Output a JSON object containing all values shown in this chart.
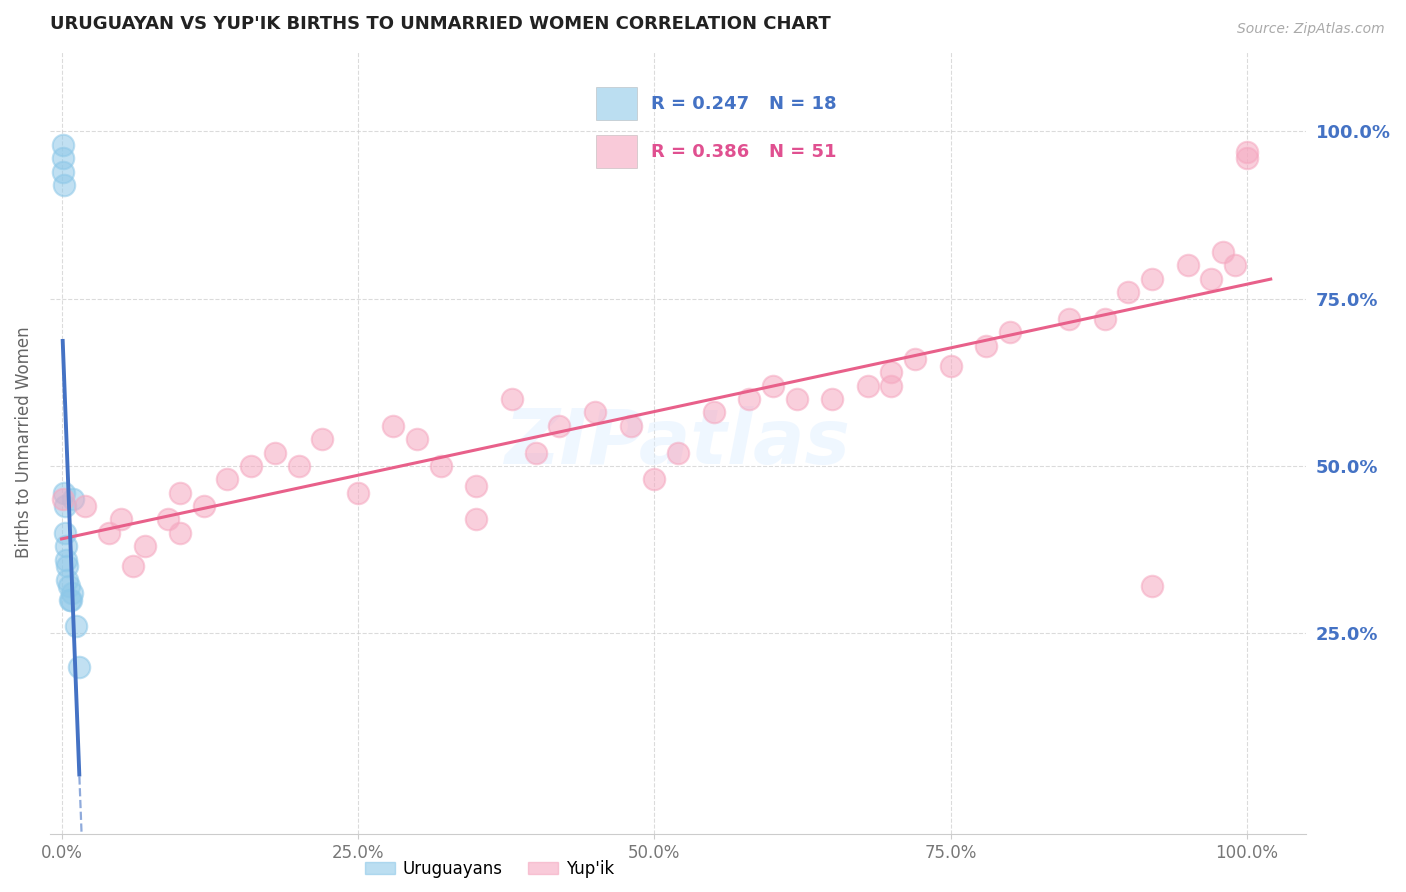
{
  "title": "URUGUAYAN VS YUP'IK BIRTHS TO UNMARRIED WOMEN CORRELATION CHART",
  "source": "Source: ZipAtlas.com",
  "ylabel": "Births to Unmarried Women",
  "r_uruguayan": "R = 0.247",
  "n_uruguayan": "N = 18",
  "r_yupik": "R = 0.386",
  "n_yupik": "N = 51",
  "uruguayan_color": "#8ec8e8",
  "yupik_color": "#f5a8c0",
  "uruguayan_line_color": "#4472c4",
  "yupik_line_color": "#e8608a",
  "background_color": "#ffffff",
  "grid_color": "#cccccc",
  "legend_bottom_labels": [
    "Uruguayans",
    "Yup'ik"
  ],
  "uruguayan_x": [
    0.001,
    0.001,
    0.001,
    0.002,
    0.002,
    0.003,
    0.003,
    0.004,
    0.004,
    0.005,
    0.005,
    0.006,
    0.007,
    0.008,
    0.009,
    0.01,
    0.012,
    0.015
  ],
  "uruguayan_y": [
    0.98,
    0.96,
    0.94,
    0.92,
    0.46,
    0.44,
    0.4,
    0.38,
    0.36,
    0.35,
    0.33,
    0.32,
    0.3,
    0.3,
    0.31,
    0.45,
    0.26,
    0.2
  ],
  "yupik_x": [
    0.001,
    0.02,
    0.04,
    0.05,
    0.06,
    0.07,
    0.09,
    0.1,
    0.12,
    0.14,
    0.16,
    0.18,
    0.2,
    0.22,
    0.25,
    0.28,
    0.3,
    0.32,
    0.35,
    0.38,
    0.4,
    0.42,
    0.45,
    0.48,
    0.5,
    0.52,
    0.55,
    0.58,
    0.6,
    0.62,
    0.65,
    0.68,
    0.7,
    0.72,
    0.75,
    0.78,
    0.8,
    0.85,
    0.88,
    0.9,
    0.92,
    0.95,
    0.97,
    0.98,
    0.99,
    1.0,
    1.0,
    0.1,
    0.35,
    0.7,
    0.92
  ],
  "yupik_y": [
    0.45,
    0.44,
    0.4,
    0.42,
    0.35,
    0.38,
    0.42,
    0.46,
    0.44,
    0.48,
    0.5,
    0.52,
    0.5,
    0.54,
    0.46,
    0.56,
    0.54,
    0.5,
    0.47,
    0.6,
    0.52,
    0.56,
    0.58,
    0.56,
    0.48,
    0.52,
    0.58,
    0.6,
    0.62,
    0.6,
    0.6,
    0.62,
    0.64,
    0.66,
    0.65,
    0.68,
    0.7,
    0.72,
    0.72,
    0.76,
    0.78,
    0.8,
    0.78,
    0.82,
    0.8,
    0.96,
    0.97,
    0.4,
    0.42,
    0.62,
    0.32
  ],
  "xticks": [
    0.0,
    0.25,
    0.5,
    0.75,
    1.0
  ],
  "xtick_labels": [
    "0.0%",
    "25.0%",
    "50.0%",
    "75.0%",
    "100.0%"
  ],
  "yticks": [
    0.25,
    0.5,
    0.75,
    1.0
  ],
  "ytick_labels": [
    "25.0%",
    "50.0%",
    "75.0%",
    "100.0%"
  ],
  "xlim": [
    -0.01,
    1.05
  ],
  "ylim": [
    -0.05,
    1.12
  ]
}
